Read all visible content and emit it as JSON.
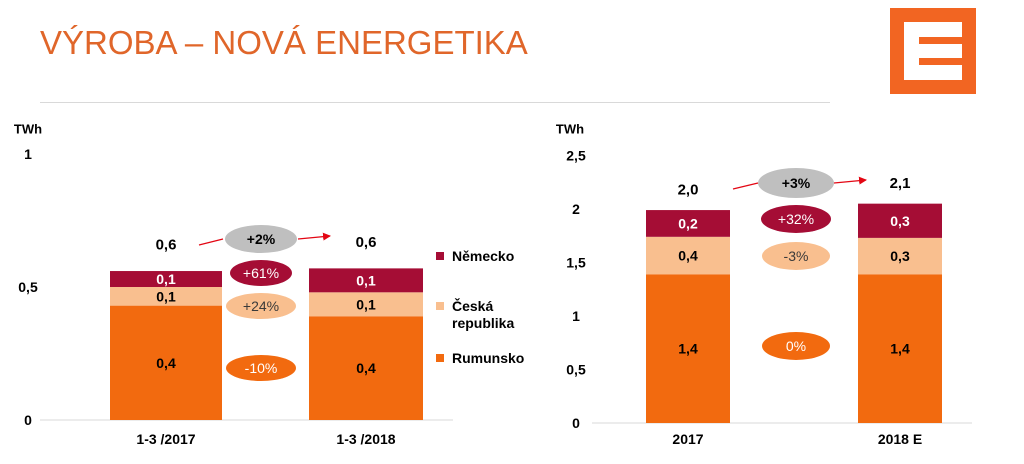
{
  "page": {
    "title": "VÝROBA – NOVÁ ENERGETIKA"
  },
  "logo": {
    "name": "cez-logo",
    "color": "#f26522"
  },
  "colors": {
    "germany": "#a50d35",
    "czech": "#f9bf8f",
    "romania": "#f26a0f",
    "growth_bubble": "#bfbfbf",
    "arrow": "#e30613"
  },
  "legend": [
    {
      "label": "Německo",
      "color": "#a50d35"
    },
    {
      "label": "Česká republika",
      "color": "#f9bf8f"
    },
    {
      "label": "Rumunsko",
      "color": "#f26a0f"
    }
  ],
  "chart_data": [
    {
      "type": "bar",
      "stacked": true,
      "unit_label": "TWh",
      "categories": [
        "1-3 /2017",
        "1-3 /2018"
      ],
      "ylim": [
        0,
        1
      ],
      "yticks": [
        "0",
        "0,5",
        "1"
      ],
      "grid": false,
      "legend_position": "right",
      "series": [
        {
          "name": "Rumunsko",
          "values": [
            0.4,
            0.4
          ],
          "labels": [
            "0,4",
            "0,4"
          ],
          "color": "#f26a0f"
        },
        {
          "name": "Česká republika",
          "values": [
            0.1,
            0.1
          ],
          "labels": [
            "0,1",
            "0,1"
          ],
          "color": "#f9bf8f"
        },
        {
          "name": "Německo",
          "values": [
            0.1,
            0.1
          ],
          "labels": [
            "0,1",
            "0,1"
          ],
          "color": "#a50d35"
        }
      ],
      "segment_values_drawn": [
        [
          0.43,
          0.07,
          0.06
        ],
        [
          0.39,
          0.09,
          0.09
        ]
      ],
      "totals": [
        "0,6",
        "0,6"
      ],
      "total_change": "+2%",
      "series_changes": {
        "Německo": "+61%",
        "Česká republika": "+24%",
        "Rumunsko": "-10%"
      }
    },
    {
      "type": "bar",
      "stacked": true,
      "unit_label": "TWh",
      "categories": [
        "2017",
        "2018 E"
      ],
      "ylim": [
        0,
        2.5
      ],
      "yticks": [
        "0",
        "0,5",
        "1",
        "1,5",
        "2",
        "2,5"
      ],
      "grid": false,
      "series": [
        {
          "name": "Rumunsko",
          "values": [
            1.4,
            1.4
          ],
          "labels": [
            "1,4",
            "1,4"
          ],
          "color": "#f26a0f"
        },
        {
          "name": "Česká republika",
          "values": [
            0.4,
            0.3
          ],
          "labels": [
            "0,4",
            "0,3"
          ],
          "color": "#f9bf8f"
        },
        {
          "name": "Německo",
          "values": [
            0.2,
            0.3
          ],
          "labels": [
            "0,2",
            "0,3"
          ],
          "color": "#a50d35"
        }
      ],
      "segment_values_drawn": [
        [
          1.39,
          0.35,
          0.25
        ],
        [
          1.39,
          0.34,
          0.32
        ]
      ],
      "totals": [
        "2,0",
        "2,1"
      ],
      "total_change": "+3%",
      "series_changes": {
        "Německo": "+32%",
        "Česká republika": "-3%",
        "Rumunsko": "0%"
      }
    }
  ]
}
